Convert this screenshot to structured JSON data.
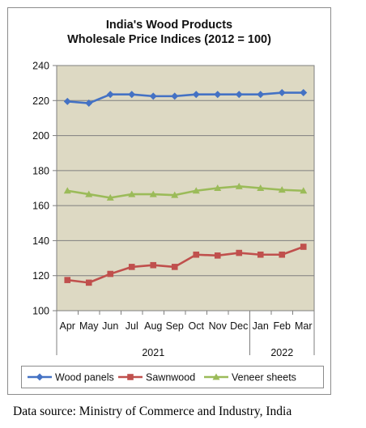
{
  "chart_data": {
    "type": "line",
    "title_lines": [
      "India's Wood Products",
      "Wholesale Price Indices (2012 = 100)"
    ],
    "categories": [
      "Apr",
      "May",
      "Jun",
      "Jul",
      "Aug",
      "Sep",
      "Oct",
      "Nov",
      "Dec",
      "Jan",
      "Feb",
      "Mar"
    ],
    "year_groups": [
      {
        "label": "2021",
        "from": 0,
        "to": 8
      },
      {
        "label": "2022",
        "from": 9,
        "to": 11
      }
    ],
    "series": [
      {
        "name": "Wood panels",
        "color": "#4472C4",
        "marker": "diamond",
        "values": [
          219.5,
          218.5,
          223.5,
          223.5,
          222.5,
          222.5,
          223.5,
          223.5,
          223.5,
          223.5,
          224.5,
          224.5
        ]
      },
      {
        "name": "Sawnwood",
        "color": "#C0504D",
        "marker": "square",
        "values": [
          117.5,
          116,
          121,
          125,
          126,
          125,
          132,
          131.5,
          133,
          132,
          132,
          136.5
        ]
      },
      {
        "name": "Veneer sheets",
        "color": "#9BBB59",
        "marker": "triangle",
        "values": [
          168.5,
          166.5,
          164.5,
          166.5,
          166.5,
          166,
          168.5,
          170,
          171,
          170,
          169,
          168.5
        ]
      }
    ],
    "y_ticks": [
      100,
      120,
      140,
      160,
      180,
      200,
      220,
      240
    ],
    "ylim": [
      100,
      240
    ],
    "grid": true,
    "plot_background": "#DDD9C3",
    "legend_position": "bottom"
  },
  "footer": {
    "source": "Data source: Ministry of Commerce and Industry, India"
  }
}
